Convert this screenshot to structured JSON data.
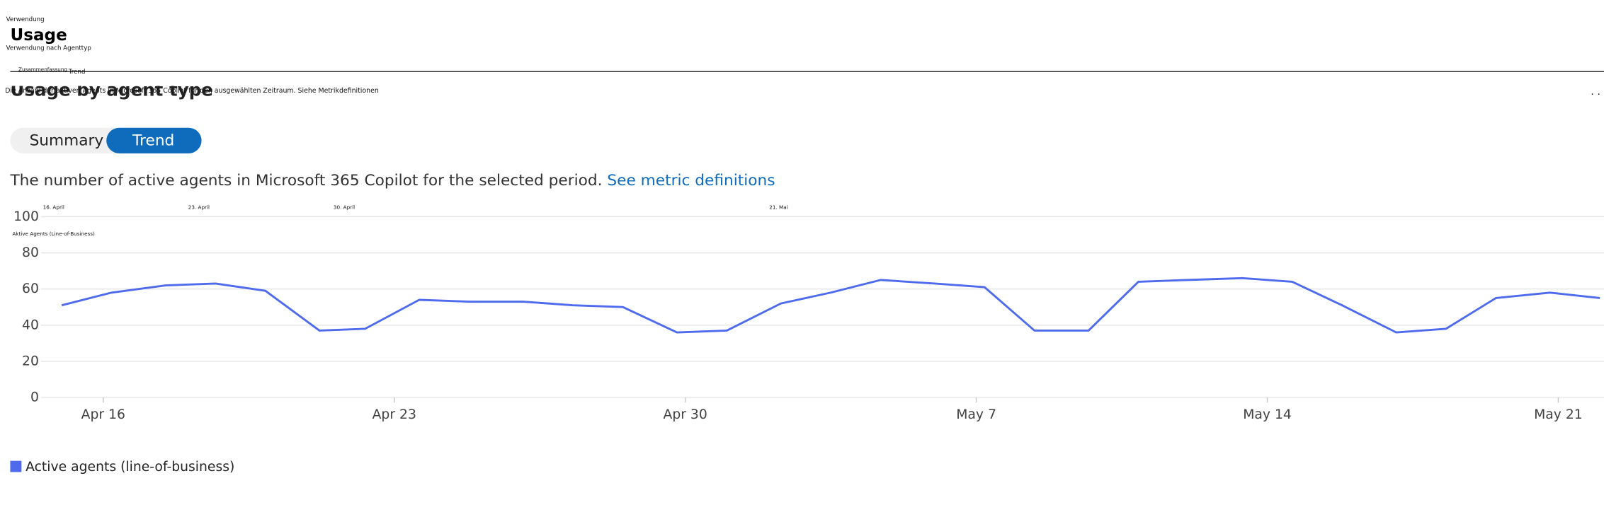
{
  "overlay": {
    "breadcrumb": "Verwendung",
    "subtitle": "Verwendung nach Agenttyp",
    "tab_summary": "Zusammenfassung",
    "tab_trend": "Trend",
    "description": "Die Anzahl der aktiven Agents in Microsoft 365 Copilot für den ausgewählten Zeitraum. Siehe Metrikdefinitionen",
    "dates": [
      "16. April",
      "23. April",
      "30. April",
      "21. Mai"
    ],
    "series_label": "Aktive Agents (Line-of-Business)"
  },
  "header": {
    "title": "Usage",
    "section_title": "Usage by agent type",
    "more": ". ."
  },
  "toggle": {
    "options": [
      "Summary",
      "Trend"
    ]
  },
  "description": {
    "text": "The number of active agents in Microsoft 365 Copilot for the selected period.",
    "link": "See metric definitions"
  },
  "chart_data": {
    "type": "line",
    "x": [
      0,
      1.2,
      2.5,
      3.7,
      4.9,
      6.2,
      7.3,
      8.6,
      9.8,
      11.1,
      12.3,
      13.5,
      14.8,
      16.0,
      17.3,
      18.5,
      19.7,
      21.0,
      22.2,
      23.4,
      24.7,
      25.9,
      27.1,
      28.4,
      29.6,
      30.8,
      32.1,
      33.3,
      34.5,
      35.8,
      37.0
    ],
    "series": [
      {
        "name": "Active agents (line-of-business)",
        "color": "#4f6bed",
        "values": [
          51,
          58,
          62,
          63,
          59,
          37,
          38,
          54,
          53,
          53,
          51,
          50,
          36,
          37,
          52,
          58,
          65,
          63,
          61,
          37,
          37,
          64,
          65,
          66,
          64,
          51,
          36,
          38,
          55,
          58,
          55
        ]
      }
    ],
    "xlim": [
      -0.5,
      37.1
    ],
    "xticks": [
      {
        "value": 1,
        "label": "Apr 16"
      },
      {
        "value": 8,
        "label": "Apr 23"
      },
      {
        "value": 15,
        "label": "Apr 30"
      },
      {
        "value": 22,
        "label": "May 7"
      },
      {
        "value": 29,
        "label": "May 14"
      },
      {
        "value": 36,
        "label": "May 21"
      }
    ],
    "ylim": [
      0,
      100
    ],
    "yticks": [
      0,
      20,
      40,
      60,
      80,
      100
    ],
    "grid": true,
    "legend": "bottom-left"
  }
}
